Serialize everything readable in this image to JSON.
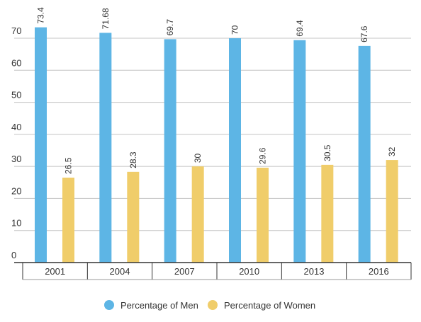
{
  "chart_data": {
    "type": "bar",
    "categories": [
      "2001",
      "2004",
      "2007",
      "2010",
      "2013",
      "2016"
    ],
    "series": [
      {
        "name": "Percentage of Men",
        "values": [
          73.4,
          71.68,
          69.7,
          70,
          69.4,
          67.6
        ],
        "color": "#5db5e5"
      },
      {
        "name": "Percentage of Women",
        "values": [
          26.5,
          28.3,
          30,
          29.6,
          30.5,
          32
        ],
        "color": "#f0cd6a"
      }
    ],
    "value_labels": {
      "Percentage of Men": [
        "73.4",
        "71.68",
        "69.7",
        "70",
        "69.4",
        "67.6"
      ],
      "Percentage of Women": [
        "26.5",
        "28.3",
        "30",
        "29.6",
        "30.5",
        "32"
      ]
    },
    "y_ticks": [
      "0",
      "10",
      "20",
      "30",
      "40",
      "50",
      "60",
      "70"
    ],
    "ylim": [
      0,
      70
    ],
    "grid": true,
    "legend_position": "bottom-center",
    "title": "",
    "xlabel": "",
    "ylabel": ""
  }
}
